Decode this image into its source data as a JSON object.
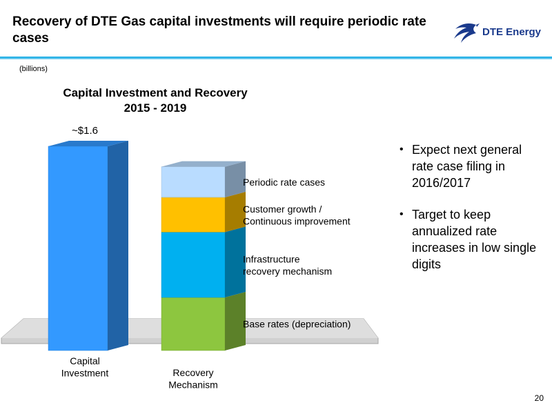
{
  "header": {
    "title": "Recovery of DTE Gas capital investments will require periodic rate cases",
    "logo_text": "DTE Energy",
    "logo_icon": "dte-eagle-logo"
  },
  "units_label": "(billions)",
  "chart_data": {
    "type": "bar",
    "title_line1": "Capital Investment and Recovery",
    "title_line2": "2015 - 2019",
    "categories": [
      "Capital\nInvestment",
      "Recovery\nMechanism"
    ],
    "capital_investment": {
      "value": 1.6,
      "label": "~$1.6",
      "color": "#3399ff"
    },
    "recovery_segments": [
      {
        "name": "Base rates (depreciation)",
        "share": 0.26,
        "color": "#8dc63f"
      },
      {
        "name": "Infrastructure\nrecovery mechanism",
        "share": 0.32,
        "color": "#00b0f0"
      },
      {
        "name": "Customer growth /\nContinuous improvement",
        "share": 0.17,
        "color": "#ffc000"
      },
      {
        "name": "Periodic rate cases",
        "share": 0.15,
        "color": "#b9dcff"
      }
    ],
    "xlabel": "",
    "ylabel": "",
    "grid": false,
    "legend": "inline-right"
  },
  "bullets": [
    "Expect next general rate case filing in 2016/2017",
    "Target to keep annualized rate increases in low single digits"
  ],
  "page_number": "20"
}
